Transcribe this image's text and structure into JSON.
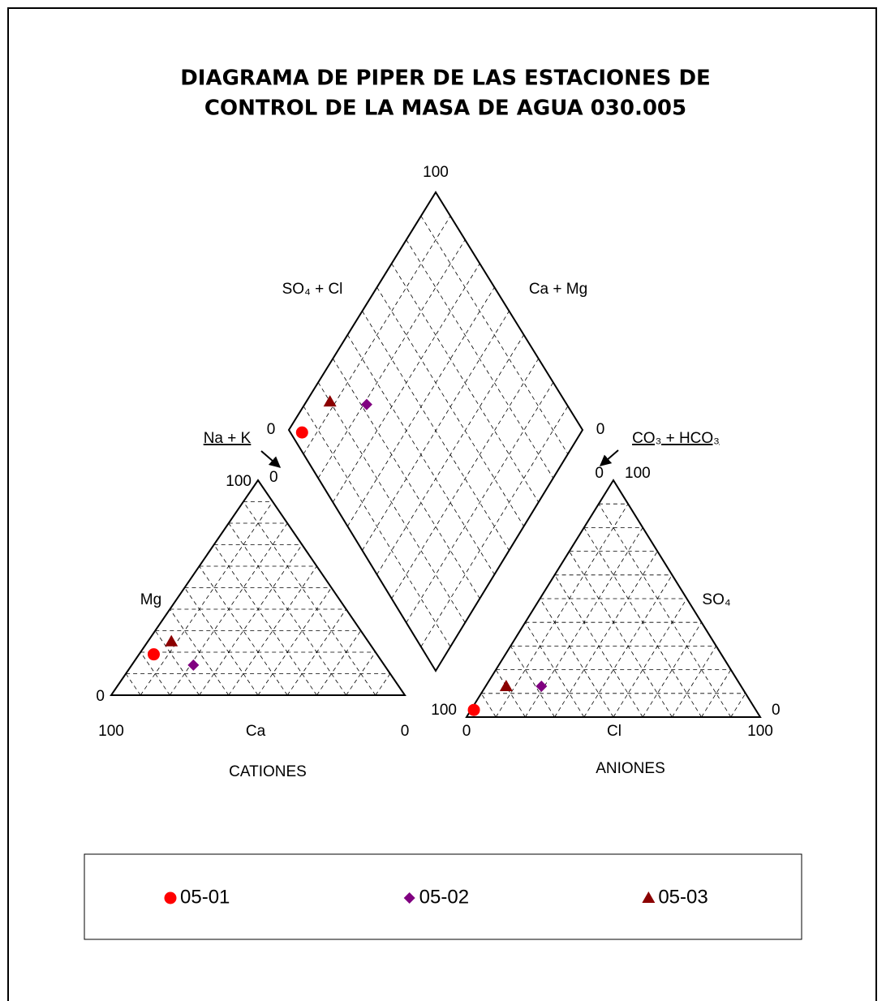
{
  "chart_data": {
    "type": "piper",
    "title": [
      "DIAGRAMA DE PIPER DE LAS ESTACIONES DE",
      "CONTROL DE LA MASA DE AGUA 030.005"
    ],
    "cations": {
      "label": "CATIONES",
      "components": [
        "Ca",
        "Mg",
        "Na + K"
      ],
      "ca_ticks": [
        0,
        100
      ],
      "mg_ticks": [
        0,
        100
      ],
      "nak_ticks": [
        0
      ]
    },
    "anions": {
      "label": "ANIONES",
      "components": [
        "Cl",
        "SO₄",
        "CO₃ + HCO₃"
      ],
      "cl_ticks": [
        0,
        100
      ],
      "so4_ticks": [
        0,
        100
      ],
      "co3_ticks": [
        0,
        100
      ]
    },
    "diamond": {
      "labels": [
        "SO₄ + Cl",
        "Ca + Mg"
      ],
      "so4cl_ticks": [
        0,
        100
      ],
      "camg_ticks": [
        0
      ]
    },
    "grid": true,
    "series": [
      {
        "name": "05-01",
        "color": "#ff0000",
        "marker": "circle",
        "cations": [
          76,
          19,
          5
        ],
        "anions": [
          1,
          3,
          96
        ]
      },
      {
        "name": "05-02",
        "color": "#800080",
        "marker": "diamond",
        "cations": [
          65,
          14,
          21
        ],
        "anions": [
          19,
          13,
          68
        ]
      },
      {
        "name": "05-03",
        "color": "#8b0000",
        "marker": "triangle",
        "cations": [
          67,
          25,
          8
        ],
        "anions": [
          7,
          13,
          80
        ]
      }
    ]
  }
}
